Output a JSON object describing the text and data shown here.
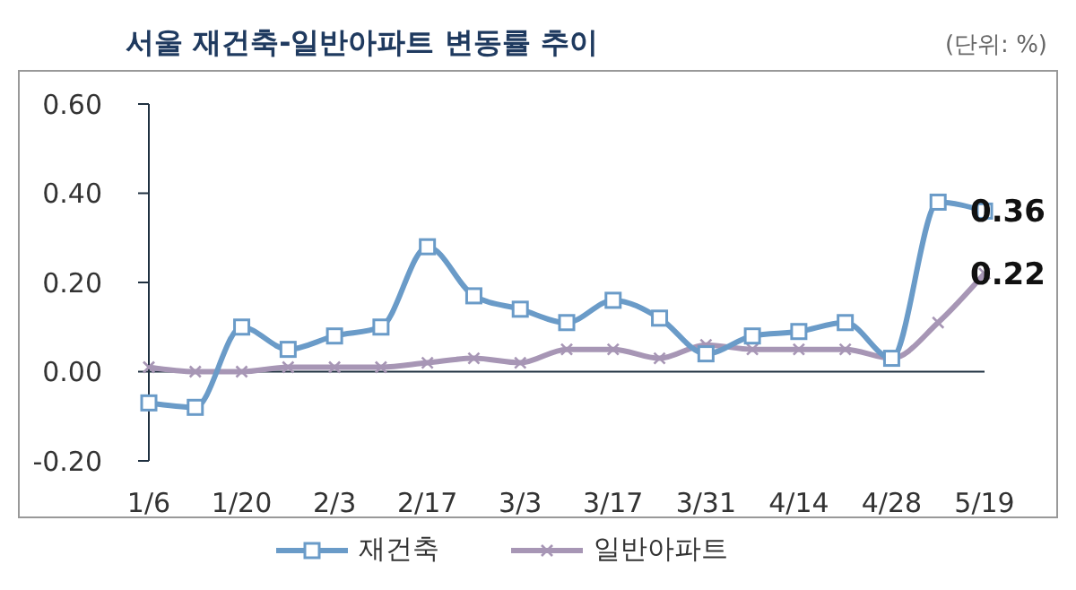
{
  "chart_data": {
    "type": "line",
    "title": "서울 재건축-일반아파트 변동률 추이",
    "annotations": [
      "(단위: %)"
    ],
    "categories": [
      "1/6",
      null,
      "1/20",
      null,
      "2/3",
      null,
      "2/17",
      null,
      "3/3",
      null,
      "3/17",
      null,
      "3/31",
      null,
      "4/14",
      null,
      "4/28",
      null,
      "5/19"
    ],
    "series": [
      {
        "name": "재건축",
        "color": "#6a9bc8",
        "marker": "square",
        "values": [
          -0.07,
          -0.08,
          0.1,
          0.05,
          0.08,
          0.1,
          0.28,
          0.17,
          0.14,
          0.11,
          0.16,
          0.12,
          0.04,
          0.08,
          0.09,
          0.11,
          0.03,
          0.38,
          0.36
        ],
        "value_labels": [
          null,
          null,
          null,
          null,
          null,
          null,
          null,
          null,
          null,
          null,
          null,
          null,
          null,
          null,
          null,
          null,
          null,
          null,
          "0.36"
        ]
      },
      {
        "name": "일반아파트",
        "color": "#a796b5",
        "marker": "cross",
        "values": [
          0.01,
          0.0,
          0.0,
          0.01,
          0.01,
          0.01,
          0.02,
          0.03,
          0.02,
          0.05,
          0.05,
          0.03,
          0.06,
          0.05,
          0.05,
          0.05,
          0.03,
          0.11,
          0.22
        ],
        "value_labels": [
          null,
          null,
          null,
          null,
          null,
          null,
          null,
          null,
          null,
          null,
          null,
          null,
          null,
          null,
          null,
          null,
          null,
          null,
          "0.22"
        ]
      }
    ],
    "ylim": [
      -0.2,
      0.6
    ],
    "yticks": [
      {
        "value": -0.2,
        "label": "-0.20"
      },
      {
        "value": 0,
        "label": "0.00"
      },
      {
        "value": 0.2,
        "label": "0.20"
      },
      {
        "value": 0.4,
        "label": "0.40"
      },
      {
        "value": 0.6,
        "label": "0.60"
      }
    ],
    "legend": "bottom"
  }
}
